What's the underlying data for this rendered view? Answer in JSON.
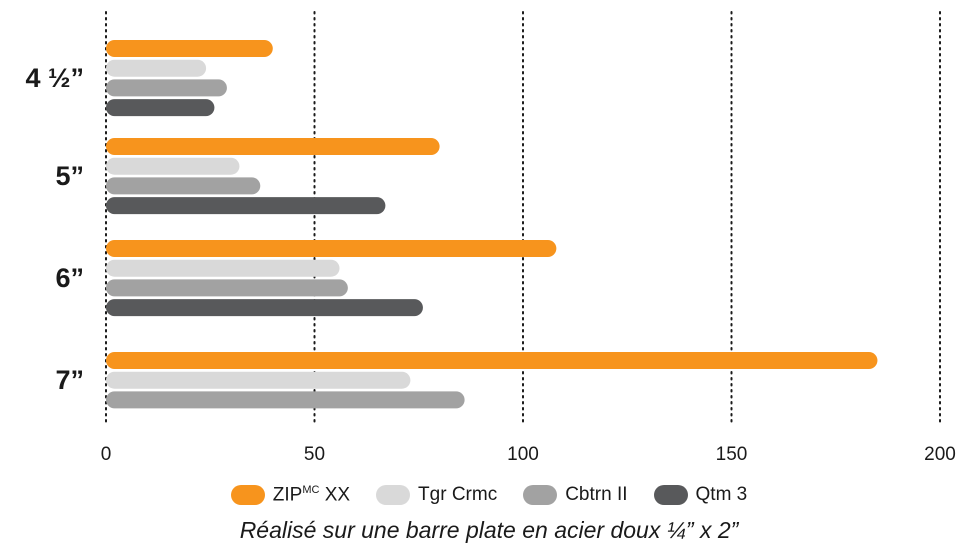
{
  "chart_data": {
    "type": "bar",
    "orientation": "horizontal",
    "categories": [
      "4 ½”",
      "5”",
      "6”",
      "7”"
    ],
    "series": [
      {
        "name": "ZIP XX",
        "name_base": "ZIP",
        "name_sup": "MC",
        "name_tail": " XX",
        "color": "#f7941d",
        "values": [
          40,
          80,
          108,
          185
        ]
      },
      {
        "name": "Tgr Crmc",
        "color": "#d9d9d9",
        "values": [
          24,
          32,
          56,
          73
        ]
      },
      {
        "name": "Cbtrn II",
        "color": "#a2a2a2",
        "values": [
          29,
          37,
          58,
          86
        ]
      },
      {
        "name": "Qtm 3",
        "color": "#58595b",
        "values": [
          26,
          67,
          76,
          null
        ]
      }
    ],
    "xlim": [
      0,
      200
    ],
    "xticks": [
      0,
      50,
      100,
      150,
      200
    ],
    "grid": "vertical dotted lines",
    "legend_position": "bottom",
    "caption": "Réalisé sur une barre plate en acier doux ¼” x 2”"
  }
}
